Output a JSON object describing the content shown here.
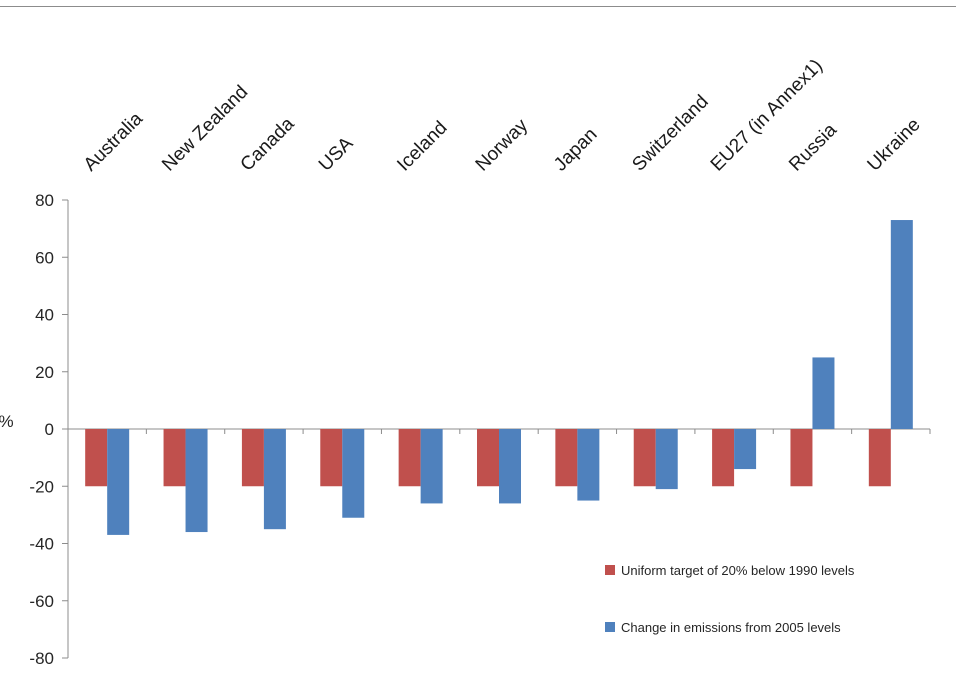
{
  "chart_data": {
    "type": "bar",
    "title": "",
    "xlabel": "",
    "ylabel": "%",
    "ylim": [
      -80,
      80
    ],
    "yticks": [
      80,
      60,
      40,
      20,
      0,
      -20,
      -40,
      -60,
      -80
    ],
    "grid": false,
    "legend_position": "bottom-right",
    "categories": [
      "Australia",
      "New Zealand",
      "Canada",
      "USA",
      "Iceland",
      "Norway",
      "Japan",
      "Switzerland",
      "EU27 (in Annex1)",
      "Russia",
      "Ukraine"
    ],
    "series": [
      {
        "name": "Uniform target of 20% below 1990  levels",
        "color": "#c0504d",
        "values": [
          -20,
          -20,
          -20,
          -20,
          -20,
          -20,
          -20,
          -20,
          -20,
          -20,
          -20
        ]
      },
      {
        "name": "Change in emissions from 2005  levels",
        "color": "#4f81bd",
        "values": [
          -37,
          -36,
          -35,
          -31,
          -26,
          -26,
          -25,
          -21,
          -14,
          25,
          73
        ]
      }
    ]
  }
}
